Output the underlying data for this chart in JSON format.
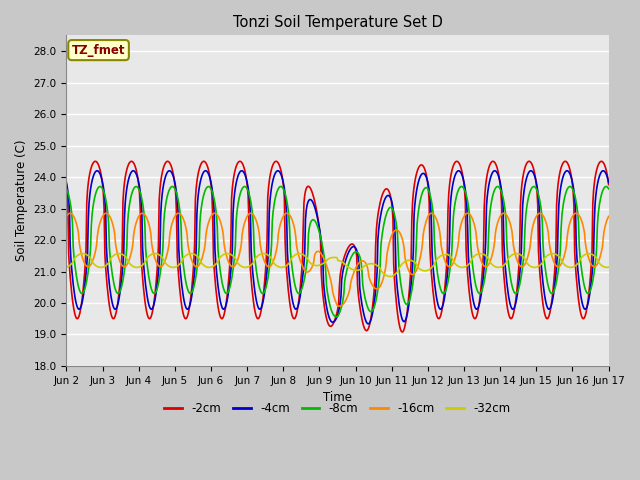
{
  "title": "Tonzi Soil Temperature Set D",
  "xlabel": "Time",
  "ylabel": "Soil Temperature (C)",
  "ylim": [
    18.0,
    28.5
  ],
  "yticks": [
    18.0,
    19.0,
    20.0,
    21.0,
    22.0,
    23.0,
    24.0,
    25.0,
    26.0,
    27.0,
    28.0
  ],
  "legend_label": "TZ_fmet",
  "series_labels": [
    "-2cm",
    "-4cm",
    "-8cm",
    "-16cm",
    "-32cm"
  ],
  "series_colors": [
    "#dd0000",
    "#0000cc",
    "#00bb00",
    "#ff8800",
    "#cccc00"
  ],
  "line_width": 1.2,
  "n_points": 720,
  "x_start": 2,
  "x_end": 17,
  "xtick_positions": [
    2,
    3,
    4,
    5,
    6,
    7,
    8,
    9,
    10,
    11,
    12,
    13,
    14,
    15,
    16,
    17
  ],
  "xtick_labels": [
    "Jun 2",
    "Jun 3",
    "Jun 4",
    "Jun 5",
    "Jun 6",
    "Jun 7",
    "Jun 8",
    "Jun 9",
    "Jun 10",
    "Jun 11",
    "Jun 12",
    "Jun 13",
    "Jun 14",
    "Jun 15",
    "Jun 16",
    "Jun 17"
  ]
}
